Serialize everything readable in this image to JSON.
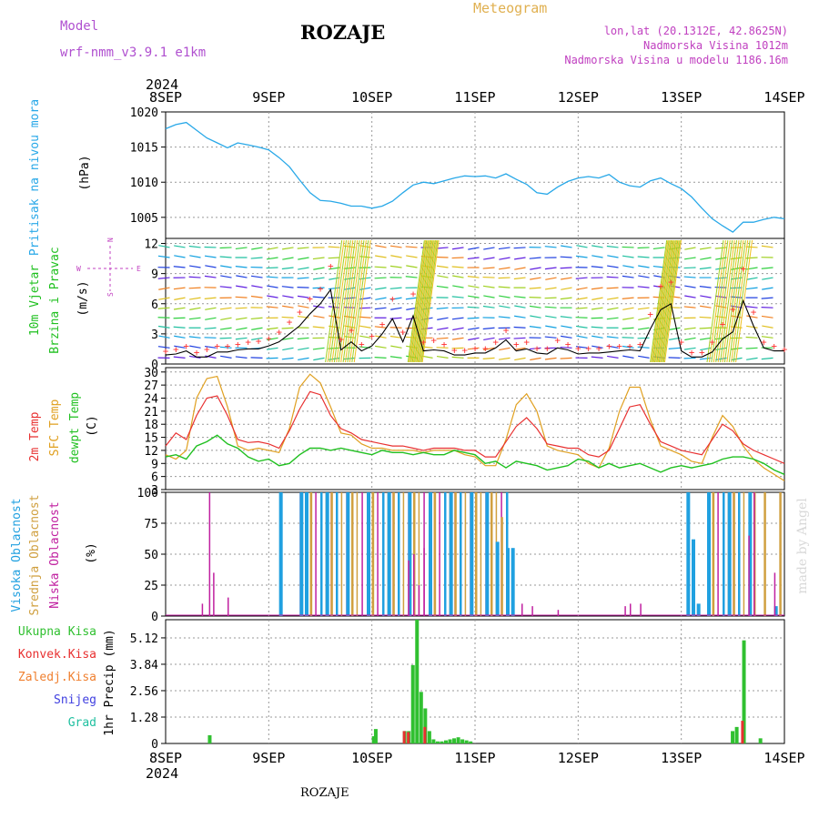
{
  "header": {
    "model_label": "Model",
    "model_name": "wrf-nmm_v3.9.1 e1km",
    "station_title": "ROZAJE",
    "meteogram_label": "Meteogram",
    "location": "lon,lat (20.1312E, 42.8625N)",
    "elevation": "Nadmorska Visina 1012m",
    "model_elevation": "Nadmorska Visina u modelu 1186.16m",
    "footer_station": "ROZAJE",
    "watermark": "made by Angel"
  },
  "time_axis": {
    "year": "2024",
    "labels": [
      "8SEP",
      "9SEP",
      "10SEP",
      "11SEP",
      "12SEP",
      "13SEP",
      "14SEP"
    ]
  },
  "colors": {
    "pressure": "#28a8e8",
    "temp2m": "#e83030",
    "sfc_temp": "#e0a020",
    "dewpoint": "#20c020",
    "high_cloud": "#20a0e0",
    "mid_cloud": "#d0a040",
    "low_cloud": "#c020a0",
    "total_precip": "#30c030",
    "conv_precip": "#e83030",
    "frozen_precip": "#f08030",
    "snow": "#4040e0",
    "hail": "#20c0a0",
    "wind_speed": "#000000",
    "gust": "#ff3030"
  },
  "panel_labels": {
    "pressure": {
      "name": "Pritisak na nivou mora",
      "unit": "(hPa)"
    },
    "wind": {
      "name1": "10m Vjetar",
      "name2": "Brzina i Pravac",
      "unit": "(m/s)",
      "compass_w": "W",
      "compass_e": "E",
      "compass_n": "N",
      "compass_s": "S"
    },
    "temp": {
      "name1": "2m Temp",
      "name2": "SFC Temp",
      "name3": "dewpt Temp",
      "unit": "(C)"
    },
    "cloud": {
      "name1": "Visoka Oblacnost",
      "name2": "Srednja Oblacnost",
      "name3": "Niska Oblacnost",
      "unit": "(%)"
    },
    "precip": {
      "total": "Ukupna Kisa",
      "conv": "Konvek.Kisa",
      "frozen": "Zaledj.Kisa",
      "snow": "Snijeg",
      "hail": "Grad",
      "unit": "1hr Precip (mm)"
    }
  },
  "chart_data": [
    {
      "type": "line",
      "panel": "pressure",
      "ylabel": "(hPa)",
      "ylim": [
        1002,
        1020
      ],
      "yticks": [
        1005,
        1010,
        1015,
        1020
      ],
      "grid": true,
      "x_days": [
        0,
        0.1,
        0.2,
        0.3,
        0.4,
        0.5,
        0.6,
        0.7,
        0.8,
        0.9,
        1.0,
        1.1,
        1.2,
        1.3,
        1.4,
        1.5,
        1.6,
        1.7,
        1.8,
        1.9,
        2.0,
        2.1,
        2.2,
        2.3,
        2.4,
        2.5,
        2.6,
        2.7,
        2.8,
        2.9,
        3.0,
        3.1,
        3.2,
        3.3,
        3.4,
        3.5,
        3.6,
        3.7,
        3.8,
        3.9,
        4.0,
        4.1,
        4.2,
        4.3,
        4.4,
        4.5,
        4.6,
        4.7,
        4.8,
        4.9,
        5.0,
        5.1,
        5.2,
        5.3,
        5.4,
        5.5,
        5.6,
        5.7,
        5.8,
        5.9,
        6.0
      ],
      "series": [
        {
          "name": "Pritisak na nivou mora",
          "values": [
            1017.6,
            1018.2,
            1018.5,
            1017.4,
            1016.3,
            1015.6,
            1014.9,
            1015.6,
            1015.3,
            1015.0,
            1014.6,
            1013.5,
            1012.2,
            1010.3,
            1008.5,
            1007.4,
            1007.3,
            1007.0,
            1006.6,
            1006.6,
            1006.3,
            1006.6,
            1007.3,
            1008.5,
            1009.6,
            1010.0,
            1009.8,
            1010.2,
            1010.6,
            1010.9,
            1010.8,
            1010.9,
            1010.6,
            1011.2,
            1010.4,
            1009.7,
            1008.5,
            1008.3,
            1009.3,
            1010.1,
            1010.6,
            1010.8,
            1010.6,
            1011.1,
            1010.0,
            1009.5,
            1009.3,
            1010.2,
            1010.6,
            1009.8,
            1009.1,
            1007.9,
            1006.3,
            1004.8,
            1003.8,
            1002.9,
            1004.3,
            1004.3,
            1004.7,
            1005.0,
            1004.8
          ]
        }
      ]
    },
    {
      "type": "line",
      "panel": "wind",
      "ylabel": "(m/s)",
      "ylim": [
        0,
        12.5
      ],
      "yticks": [
        0,
        3,
        6,
        9,
        12
      ],
      "grid": true,
      "x_days": [
        0,
        0.1,
        0.2,
        0.3,
        0.4,
        0.5,
        0.6,
        0.7,
        0.8,
        0.9,
        1.0,
        1.1,
        1.2,
        1.3,
        1.4,
        1.5,
        1.6,
        1.7,
        1.8,
        1.9,
        2.0,
        2.1,
        2.2,
        2.3,
        2.4,
        2.5,
        2.6,
        2.7,
        2.8,
        2.9,
        3.0,
        3.1,
        3.2,
        3.3,
        3.4,
        3.5,
        3.6,
        3.7,
        3.8,
        3.9,
        4.0,
        4.1,
        4.2,
        4.3,
        4.4,
        4.5,
        4.6,
        4.7,
        4.8,
        4.9,
        5.0,
        5.1,
        5.2,
        5.3,
        5.4,
        5.5,
        5.6,
        5.7,
        5.8,
        5.9,
        6.0
      ],
      "series": [
        {
          "name": "wind speed",
          "values": [
            0.9,
            1.0,
            1.3,
            0.7,
            0.7,
            1.2,
            1.2,
            1.4,
            1.5,
            1.5,
            1.8,
            2.2,
            3.0,
            3.8,
            5.0,
            6.0,
            7.4,
            1.4,
            2.2,
            1.3,
            1.8,
            3.0,
            4.5,
            2.2,
            4.8,
            1.3,
            1.4,
            1.3,
            0.9,
            0.9,
            1.1,
            1.1,
            1.6,
            2.4,
            1.3,
            1.5,
            1.1,
            1.0,
            1.6,
            1.4,
            1.0,
            1.1,
            1.1,
            1.2,
            1.3,
            1.4,
            1.3,
            3.5,
            5.4,
            6.0,
            1.3,
            0.7,
            0.7,
            1.2,
            2.5,
            3.2,
            6.3,
            3.8,
            1.6,
            1.3,
            1.3
          ]
        },
        {
          "name": "gust",
          "values": [
            1.3,
            1.5,
            1.8,
            1.2,
            1.5,
            1.8,
            1.8,
            2.0,
            2.2,
            2.3,
            2.6,
            3.2,
            4.2,
            5.2,
            6.5,
            7.5,
            9.8,
            2.5,
            3.4,
            2.0,
            2.8,
            4.0,
            6.5,
            3.2,
            7.0,
            2.2,
            2.4,
            2.0,
            1.4,
            1.4,
            1.6,
            1.6,
            2.2,
            3.4,
            2.0,
            2.2,
            1.6,
            1.6,
            2.4,
            2.0,
            1.6,
            1.6,
            1.6,
            1.8,
            1.8,
            1.8,
            2.0,
            5.0,
            7.8,
            8.2,
            2.2,
            1.2,
            1.2,
            2.2,
            4.0,
            5.5,
            9.5,
            5.2,
            2.2,
            1.8,
            1.5
          ]
        }
      ],
      "wind_barbs": "direction arrows on levels 0.5-12 m/s"
    },
    {
      "type": "line",
      "panel": "temperature",
      "ylabel": "(C)",
      "ylim": [
        3,
        31
      ],
      "yticks": [
        3,
        6,
        9,
        12,
        15,
        18,
        21,
        24,
        27,
        30
      ],
      "grid": true,
      "x_days": [
        0,
        0.1,
        0.2,
        0.3,
        0.4,
        0.5,
        0.6,
        0.7,
        0.8,
        0.9,
        1.0,
        1.1,
        1.2,
        1.3,
        1.4,
        1.5,
        1.6,
        1.7,
        1.8,
        1.9,
        2.0,
        2.1,
        2.2,
        2.3,
        2.4,
        2.5,
        2.6,
        2.7,
        2.8,
        2.9,
        3.0,
        3.1,
        3.2,
        3.3,
        3.4,
        3.5,
        3.6,
        3.7,
        3.8,
        3.9,
        4.0,
        4.1,
        4.2,
        4.3,
        4.4,
        4.5,
        4.6,
        4.7,
        4.8,
        4.9,
        5.0,
        5.1,
        5.2,
        5.3,
        5.4,
        5.5,
        5.6,
        5.7,
        5.8,
        5.9,
        6.0
      ],
      "series": [
        {
          "name": "2m Temp",
          "values": [
            13.0,
            16.0,
            14.5,
            20.0,
            24.0,
            24.5,
            20.0,
            14.5,
            13.8,
            14.0,
            13.5,
            12.5,
            16.5,
            21.5,
            25.5,
            24.8,
            20.0,
            17.0,
            16.0,
            14.5,
            14.0,
            13.5,
            13.0,
            13.0,
            12.5,
            12.0,
            12.5,
            12.5,
            12.5,
            12.0,
            12.0,
            10.5,
            10.5,
            14.0,
            17.5,
            19.5,
            17.0,
            13.5,
            13.0,
            12.5,
            12.5,
            11.0,
            10.5,
            12.0,
            17.0,
            22.0,
            22.5,
            18.0,
            14.0,
            13.0,
            12.0,
            11.5,
            11.0,
            14.5,
            18.0,
            16.5,
            13.5,
            12.0,
            11.0,
            10.0,
            9.0
          ]
        },
        {
          "name": "SFC Temp",
          "values": [
            11.0,
            10.0,
            12.0,
            24.0,
            28.5,
            29.0,
            22.0,
            13.0,
            12.0,
            12.5,
            12.0,
            11.5,
            17.0,
            26.5,
            29.5,
            27.5,
            22.0,
            16.0,
            15.5,
            13.5,
            12.5,
            12.5,
            12.0,
            12.0,
            12.0,
            11.5,
            12.0,
            12.0,
            12.0,
            11.0,
            10.5,
            8.5,
            8.5,
            14.5,
            22.5,
            25.0,
            21.0,
            13.0,
            12.0,
            11.5,
            11.0,
            9.0,
            8.0,
            12.5,
            21.0,
            26.5,
            26.5,
            19.0,
            13.0,
            12.0,
            11.0,
            9.5,
            9.0,
            15.0,
            20.0,
            17.5,
            13.0,
            10.0,
            8.0,
            6.5,
            5.0
          ]
        },
        {
          "name": "dewpt Temp",
          "values": [
            10.5,
            11.0,
            10.0,
            13.0,
            14.0,
            15.5,
            13.5,
            12.5,
            10.5,
            9.5,
            10.0,
            8.5,
            9.0,
            11.0,
            12.5,
            12.5,
            12.0,
            12.5,
            12.0,
            11.5,
            11.0,
            12.0,
            11.5,
            11.5,
            11.0,
            11.5,
            11.0,
            11.0,
            12.0,
            11.5,
            11.0,
            9.0,
            9.5,
            8.0,
            9.5,
            9.0,
            8.5,
            7.5,
            8.0,
            8.5,
            10.0,
            9.5,
            8.0,
            9.0,
            8.0,
            8.5,
            9.0,
            8.0,
            7.0,
            8.0,
            8.5,
            8.0,
            8.5,
            9.0,
            10.0,
            10.5,
            10.5,
            10.0,
            9.0,
            7.5,
            6.5
          ]
        }
      ]
    },
    {
      "type": "bar",
      "panel": "cloud",
      "ylabel": "(%)",
      "ylim": [
        0,
        100
      ],
      "yticks": [
        0,
        25,
        50,
        75,
        100
      ],
      "grid": true,
      "series": [
        {
          "name": "Visoka Oblacnost",
          "bars": [
            [
              1.1,
              100
            ],
            [
              1.3,
              100
            ],
            [
              1.35,
              100
            ],
            [
              1.55,
              100
            ],
            [
              1.75,
              100
            ],
            [
              1.95,
              100
            ],
            [
              2.15,
              100
            ],
            [
              2.35,
              100
            ],
            [
              2.55,
              100
            ],
            [
              2.75,
              100
            ],
            [
              2.95,
              100
            ],
            [
              3.1,
              100
            ],
            [
              3.2,
              60
            ],
            [
              3.3,
              55
            ],
            [
              3.35,
              55
            ],
            [
              5.05,
              100
            ],
            [
              5.1,
              62
            ],
            [
              5.15,
              10
            ],
            [
              5.25,
              100
            ],
            [
              5.45,
              100
            ],
            [
              5.65,
              100
            ],
            [
              5.9,
              8
            ]
          ]
        },
        {
          "name": "Srednja Oblacnost",
          "bars": [
            [
              1.4,
              100
            ],
            [
              1.6,
              100
            ],
            [
              1.8,
              100
            ],
            [
              2.0,
              100
            ],
            [
              2.2,
              100
            ],
            [
              2.4,
              100
            ],
            [
              2.6,
              100
            ],
            [
              2.8,
              100
            ],
            [
              3.0,
              100
            ],
            [
              3.15,
              100
            ],
            [
              3.25,
              80
            ],
            [
              5.3,
              100
            ],
            [
              5.5,
              100
            ],
            [
              5.7,
              100
            ],
            [
              5.8,
              100
            ],
            [
              5.95,
              100
            ]
          ]
        },
        {
          "name": "Niska Oblacnost",
          "bars": [
            [
              0.35,
              10
            ],
            [
              0.42,
              100
            ],
            [
              0.46,
              35
            ],
            [
              0.6,
              15
            ],
            [
              2.35,
              45
            ],
            [
              2.4,
              50
            ],
            [
              2.5,
              55
            ],
            [
              2.45,
              25
            ],
            [
              3.45,
              10
            ],
            [
              3.55,
              8
            ],
            [
              3.8,
              5
            ],
            [
              4.45,
              8
            ],
            [
              4.5,
              10
            ],
            [
              4.6,
              10
            ],
            [
              5.65,
              65
            ],
            [
              5.7,
              100
            ],
            [
              5.9,
              35
            ]
          ]
        }
      ]
    },
    {
      "type": "bar",
      "panel": "precipitation",
      "ylabel": "1hr Precip (mm)",
      "ylim": [
        0,
        6.0
      ],
      "yticks": [
        0,
        1.28,
        2.56,
        3.84,
        5.12
      ],
      "grid": true,
      "series": [
        {
          "name": "Ukupna Kisa",
          "bars": [
            [
              0.41,
              0.4
            ],
            [
              2.0,
              0.35
            ],
            [
              2.02,
              0.7
            ],
            [
              2.3,
              0.6
            ],
            [
              2.34,
              0.6
            ],
            [
              2.38,
              3.8
            ],
            [
              2.42,
              6.0
            ],
            [
              2.46,
              2.5
            ],
            [
              2.5,
              1.7
            ],
            [
              2.54,
              0.6
            ],
            [
              2.58,
              0.2
            ],
            [
              2.62,
              0.1
            ],
            [
              2.66,
              0.1
            ],
            [
              2.7,
              0.15
            ],
            [
              2.74,
              0.2
            ],
            [
              2.78,
              0.25
            ],
            [
              2.82,
              0.3
            ],
            [
              2.86,
              0.2
            ],
            [
              2.9,
              0.15
            ],
            [
              2.94,
              0.1
            ],
            [
              5.48,
              0.6
            ],
            [
              5.52,
              0.8
            ],
            [
              5.59,
              5.0
            ],
            [
              5.75,
              0.25
            ]
          ]
        },
        {
          "name": "Konvek.Kisa",
          "bars": [
            [
              2.3,
              0.6
            ],
            [
              2.34,
              0.55
            ],
            [
              2.5,
              0.8
            ],
            [
              5.58,
              1.1
            ]
          ]
        },
        {
          "name": "Zaledj.Kisa",
          "bars": []
        },
        {
          "name": "Snijeg",
          "bars": []
        },
        {
          "name": "Grad",
          "bars": []
        }
      ]
    }
  ]
}
